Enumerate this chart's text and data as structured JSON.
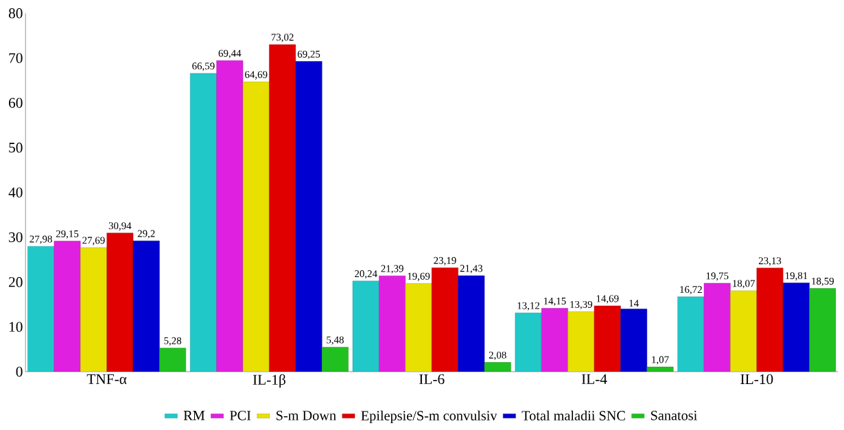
{
  "chart_data": {
    "type": "bar",
    "categories": [
      "TNF-α",
      "IL-1β",
      "IL-6",
      "IL-4",
      "IL-10"
    ],
    "series": [
      {
        "name": "RM",
        "color": "#20c8c8",
        "values": [
          27.98,
          66.59,
          20.24,
          13.12,
          16.72
        ],
        "value_labels": [
          "27,98",
          "66,59",
          "20,24",
          "13,12",
          "16,72"
        ]
      },
      {
        "name": "PCI",
        "color": "#e020e0",
        "values": [
          29.15,
          69.44,
          21.39,
          14.15,
          19.75
        ],
        "value_labels": [
          "29,15",
          "69,44",
          "21,39",
          "14,15",
          "19,75"
        ]
      },
      {
        "name": "S-m Down",
        "color": "#e8e000",
        "values": [
          27.69,
          64.69,
          19.69,
          13.39,
          18.07
        ],
        "value_labels": [
          "27,69",
          "64,69",
          "19,69",
          "13,39",
          "18,07"
        ]
      },
      {
        "name": "Epilepsie/S-m convulsiv",
        "color": "#e00000",
        "values": [
          30.94,
          73.02,
          23.19,
          14.69,
          23.13
        ],
        "value_labels": [
          "30,94",
          "73,02",
          "23,19",
          "14,69",
          "23,13"
        ]
      },
      {
        "name": "Total maladii SNC",
        "color": "#0000d0",
        "values": [
          29.2,
          69.25,
          21.43,
          14,
          19.81
        ],
        "value_labels": [
          "29,2",
          "69,25",
          "21,43",
          "14",
          "19,81"
        ]
      },
      {
        "name": "Sanatosi",
        "color": "#20c020",
        "values": [
          5.28,
          5.48,
          2.08,
          1.07,
          18.59
        ],
        "value_labels": [
          "5,28",
          "5,48",
          "2,08",
          "1,07",
          "18,59"
        ]
      }
    ],
    "ylim": [
      0,
      80
    ],
    "yticks": [
      0,
      10,
      20,
      30,
      40,
      50,
      60,
      70,
      80
    ],
    "legend": "bottom"
  }
}
